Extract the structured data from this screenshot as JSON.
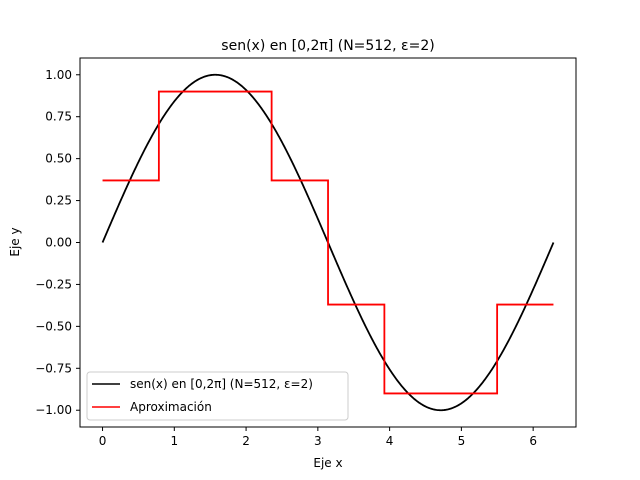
{
  "chart_data": {
    "type": "line",
    "title": "sen(x) en [0,2π] (N=512, ε=2)",
    "xlabel": "Eje x",
    "ylabel": "Eje y",
    "xlim": [
      -0.314,
      6.597
    ],
    "ylim": [
      -1.1,
      1.1
    ],
    "grid": false,
    "legend_position": "lower left",
    "xticks": [
      0,
      1,
      2,
      3,
      4,
      5,
      6
    ],
    "xtick_labels": [
      "0",
      "1",
      "2",
      "3",
      "4",
      "5",
      "6"
    ],
    "yticks": [
      -1.0,
      -0.75,
      -0.5,
      -0.25,
      0.0,
      0.25,
      0.5,
      0.75,
      1.0
    ],
    "ytick_labels": [
      "−1.00",
      "−0.75",
      "−0.50",
      "−0.25",
      "0.00",
      "0.25",
      "0.50",
      "0.75",
      "1.00"
    ],
    "series": [
      {
        "name": "sen(x) en [0,2π] (N=512, ε=2)",
        "color": "#000000",
        "function": "sin",
        "x_range": [
          0,
          6.2832
        ],
        "samples": 512
      },
      {
        "name": "Aproximación",
        "color": "#ff0000",
        "step": "post",
        "x": [
          0,
          0.785,
          1.571,
          2.356,
          3.142,
          3.927,
          4.712,
          5.498,
          6.283
        ],
        "y": [
          0.37,
          0.9,
          0.9,
          0.37,
          -0.37,
          -0.9,
          -0.9,
          -0.37,
          -0.37
        ]
      }
    ]
  }
}
